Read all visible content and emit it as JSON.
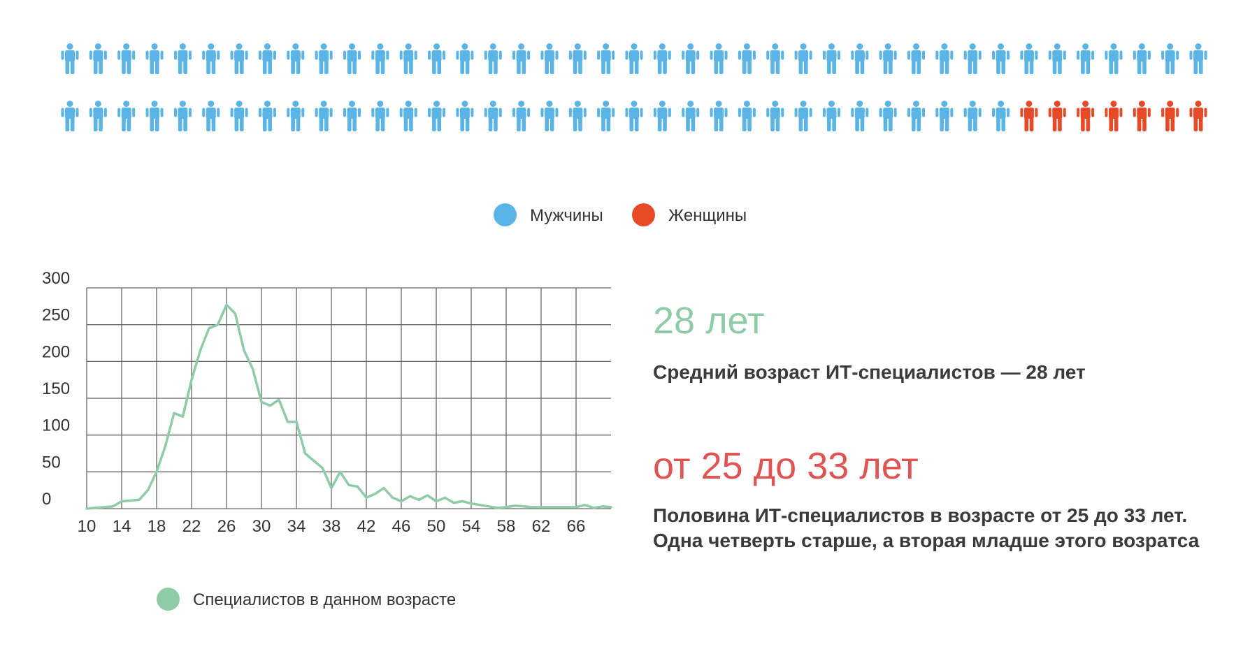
{
  "colors": {
    "men": "#5ab4e5",
    "women": "#e84a27",
    "series": "#8fcba6",
    "stat_avg": "#8fcba6",
    "stat_range": "#e05553",
    "grid": "#666666"
  },
  "people": {
    "icon": "person-icon",
    "per_row": 41,
    "rows": 2,
    "men": 75,
    "women": 7
  },
  "legend": {
    "men_label": "Мужчины",
    "women_label": "Женщины"
  },
  "chart_data": {
    "type": "line",
    "series": [
      {
        "name": "Специалистов в данном возрасте",
        "x": [
          10,
          11,
          12,
          13,
          14,
          15,
          16,
          17,
          18,
          19,
          20,
          21,
          22,
          23,
          24,
          25,
          26,
          27,
          28,
          29,
          30,
          31,
          32,
          33,
          34,
          35,
          36,
          37,
          38,
          39,
          40,
          41,
          42,
          43,
          44,
          45,
          46,
          47,
          48,
          49,
          50,
          51,
          52,
          53,
          54,
          55,
          56,
          57,
          58,
          59,
          60,
          61,
          62,
          63,
          64,
          65,
          66,
          67,
          68,
          69,
          70
        ],
        "values": [
          0,
          1,
          2,
          3,
          10,
          11,
          12,
          25,
          50,
          85,
          130,
          125,
          175,
          215,
          245,
          250,
          277,
          265,
          215,
          190,
          145,
          140,
          148,
          118,
          118,
          75,
          65,
          55,
          28,
          50,
          32,
          30,
          15,
          20,
          28,
          15,
          10,
          17,
          12,
          18,
          10,
          15,
          8,
          10,
          7,
          5,
          3,
          1,
          2,
          4,
          3,
          2,
          2,
          2,
          2,
          2,
          2,
          5,
          1,
          3,
          2
        ]
      }
    ],
    "x_ticks": [
      "10",
      "14",
      "18",
      "22",
      "26",
      "30",
      "34",
      "38",
      "42",
      "46",
      "50",
      "54",
      "58",
      "62",
      "66"
    ],
    "y_ticks": [
      "0",
      "50",
      "100",
      "150",
      "200",
      "250",
      "300"
    ],
    "xlim": [
      10,
      70
    ],
    "ylim": [
      0,
      300
    ],
    "grid": true,
    "legend_label": "Специалистов в данном возрасте"
  },
  "stats": {
    "avg_big": "28 лет",
    "avg_text": "Средний возраст ИТ-специалистов — 28 лет",
    "range_big": "от 25 до 33 лет",
    "range_text_1": "Половина ИТ-специалистов в возрасте от 25 до 33 лет.",
    "range_text_2": "Одна четверть старше, а вторая младше этого возратса"
  }
}
